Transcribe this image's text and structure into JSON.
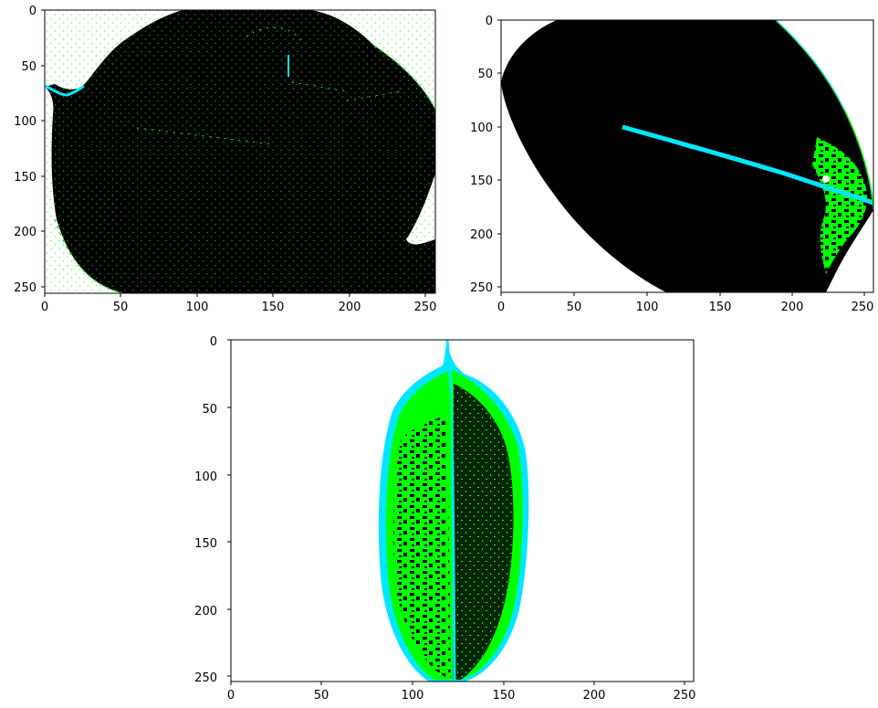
{
  "figure": {
    "panels": [
      {
        "id": "top-left",
        "x_ticks": [
          "0",
          "50",
          "100",
          "150",
          "200",
          "250"
        ],
        "y_ticks": [
          "0",
          "50",
          "100",
          "150",
          "200",
          "250"
        ],
        "x_range": [
          0,
          256
        ],
        "y_range": [
          256,
          0
        ]
      },
      {
        "id": "top-right",
        "x_ticks": [
          "0",
          "50",
          "100",
          "150",
          "200",
          "250"
        ],
        "y_ticks": [
          "0",
          "50",
          "100",
          "150",
          "200",
          "250"
        ],
        "x_range": [
          0,
          256
        ],
        "y_range": [
          256,
          0
        ]
      },
      {
        "id": "bottom",
        "x_ticks": [
          "0",
          "50",
          "100",
          "150",
          "200",
          "250"
        ],
        "y_ticks": [
          "0",
          "50",
          "100",
          "150",
          "200",
          "250"
        ],
        "x_range": [
          0,
          256
        ],
        "y_range": [
          256,
          0
        ]
      }
    ],
    "colors": {
      "leaf_dark": "#000000",
      "vein_cyan": "#00e6ff",
      "healthy_green": "#00ff00",
      "background": "#ffffff"
    }
  }
}
